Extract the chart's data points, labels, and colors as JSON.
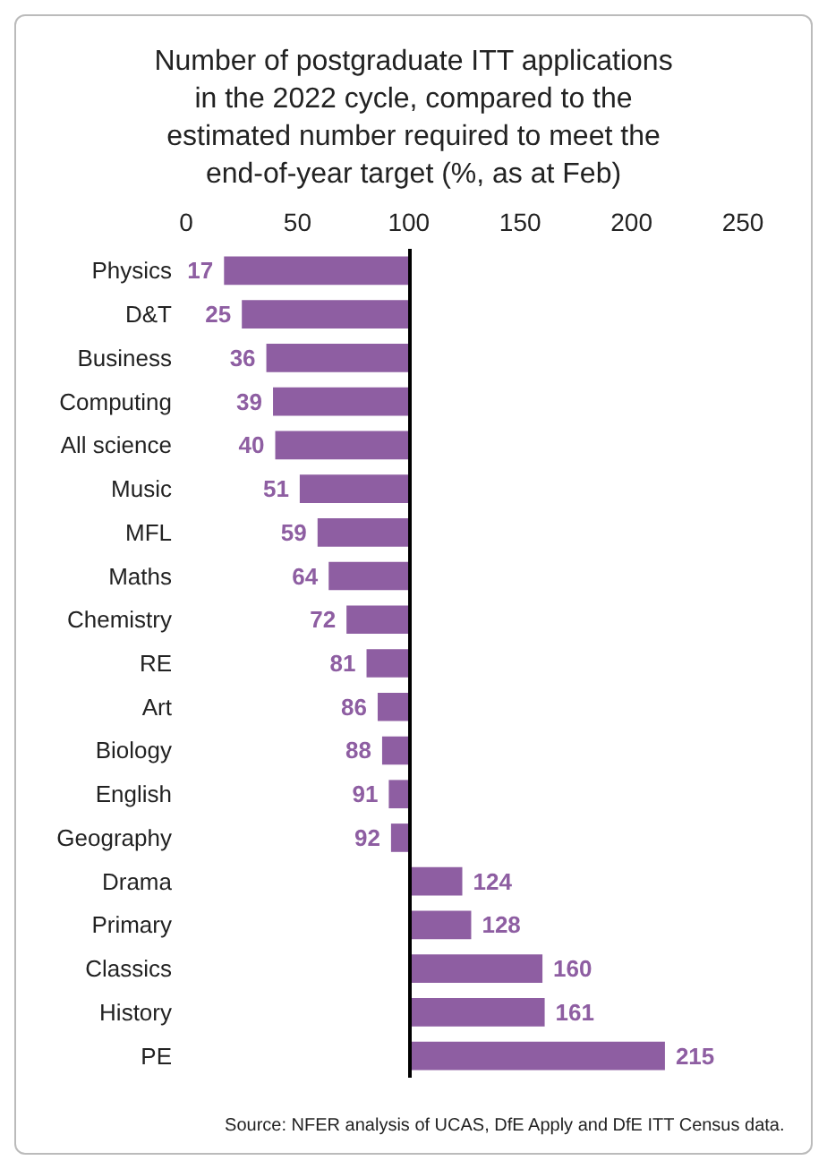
{
  "chart_data": {
    "type": "bar",
    "orientation": "horizontal",
    "title": "Number of postgraduate ITT applications\nin the 2022 cycle, compared to the\nestimated number required to meet the\nend-of-year target (%, as at Feb)",
    "categories": [
      "Physics",
      "D&T",
      "Business",
      "Computing",
      "All science",
      "Music",
      "MFL",
      "Maths",
      "Chemistry",
      "RE",
      "Art",
      "Biology",
      "English",
      "Geography",
      "Drama",
      "Primary",
      "Classics",
      "History",
      "PE"
    ],
    "base": [
      100,
      100,
      100,
      100,
      100,
      100,
      100,
      100,
      100,
      100,
      100,
      100,
      100,
      100,
      100,
      100,
      100,
      100,
      100
    ],
    "values": [
      -83,
      -75,
      -64,
      -61,
      -60,
      -49,
      -41,
      -36,
      -28,
      -19,
      -14,
      -12,
      -9,
      -8,
      24,
      28,
      60,
      61,
      115
    ],
    "value_labels": [
      "17",
      "25",
      "36",
      "39",
      "40",
      "51",
      "59",
      "64",
      "72",
      "81",
      "86",
      "88",
      "91",
      "92",
      "124",
      "128",
      "160",
      "161",
      "215"
    ],
    "color": "#8e5ea2",
    "xlim": [
      0,
      250
    ],
    "xticks": [
      0,
      50,
      100,
      150,
      200,
      250
    ],
    "ref_lines": [
      {
        "axis": "x",
        "value": 100,
        "color": "#000000"
      }
    ],
    "annotations": [
      "Source: NFER analysis of UCAS, DfE Apply and DfE ITT Census data."
    ]
  }
}
